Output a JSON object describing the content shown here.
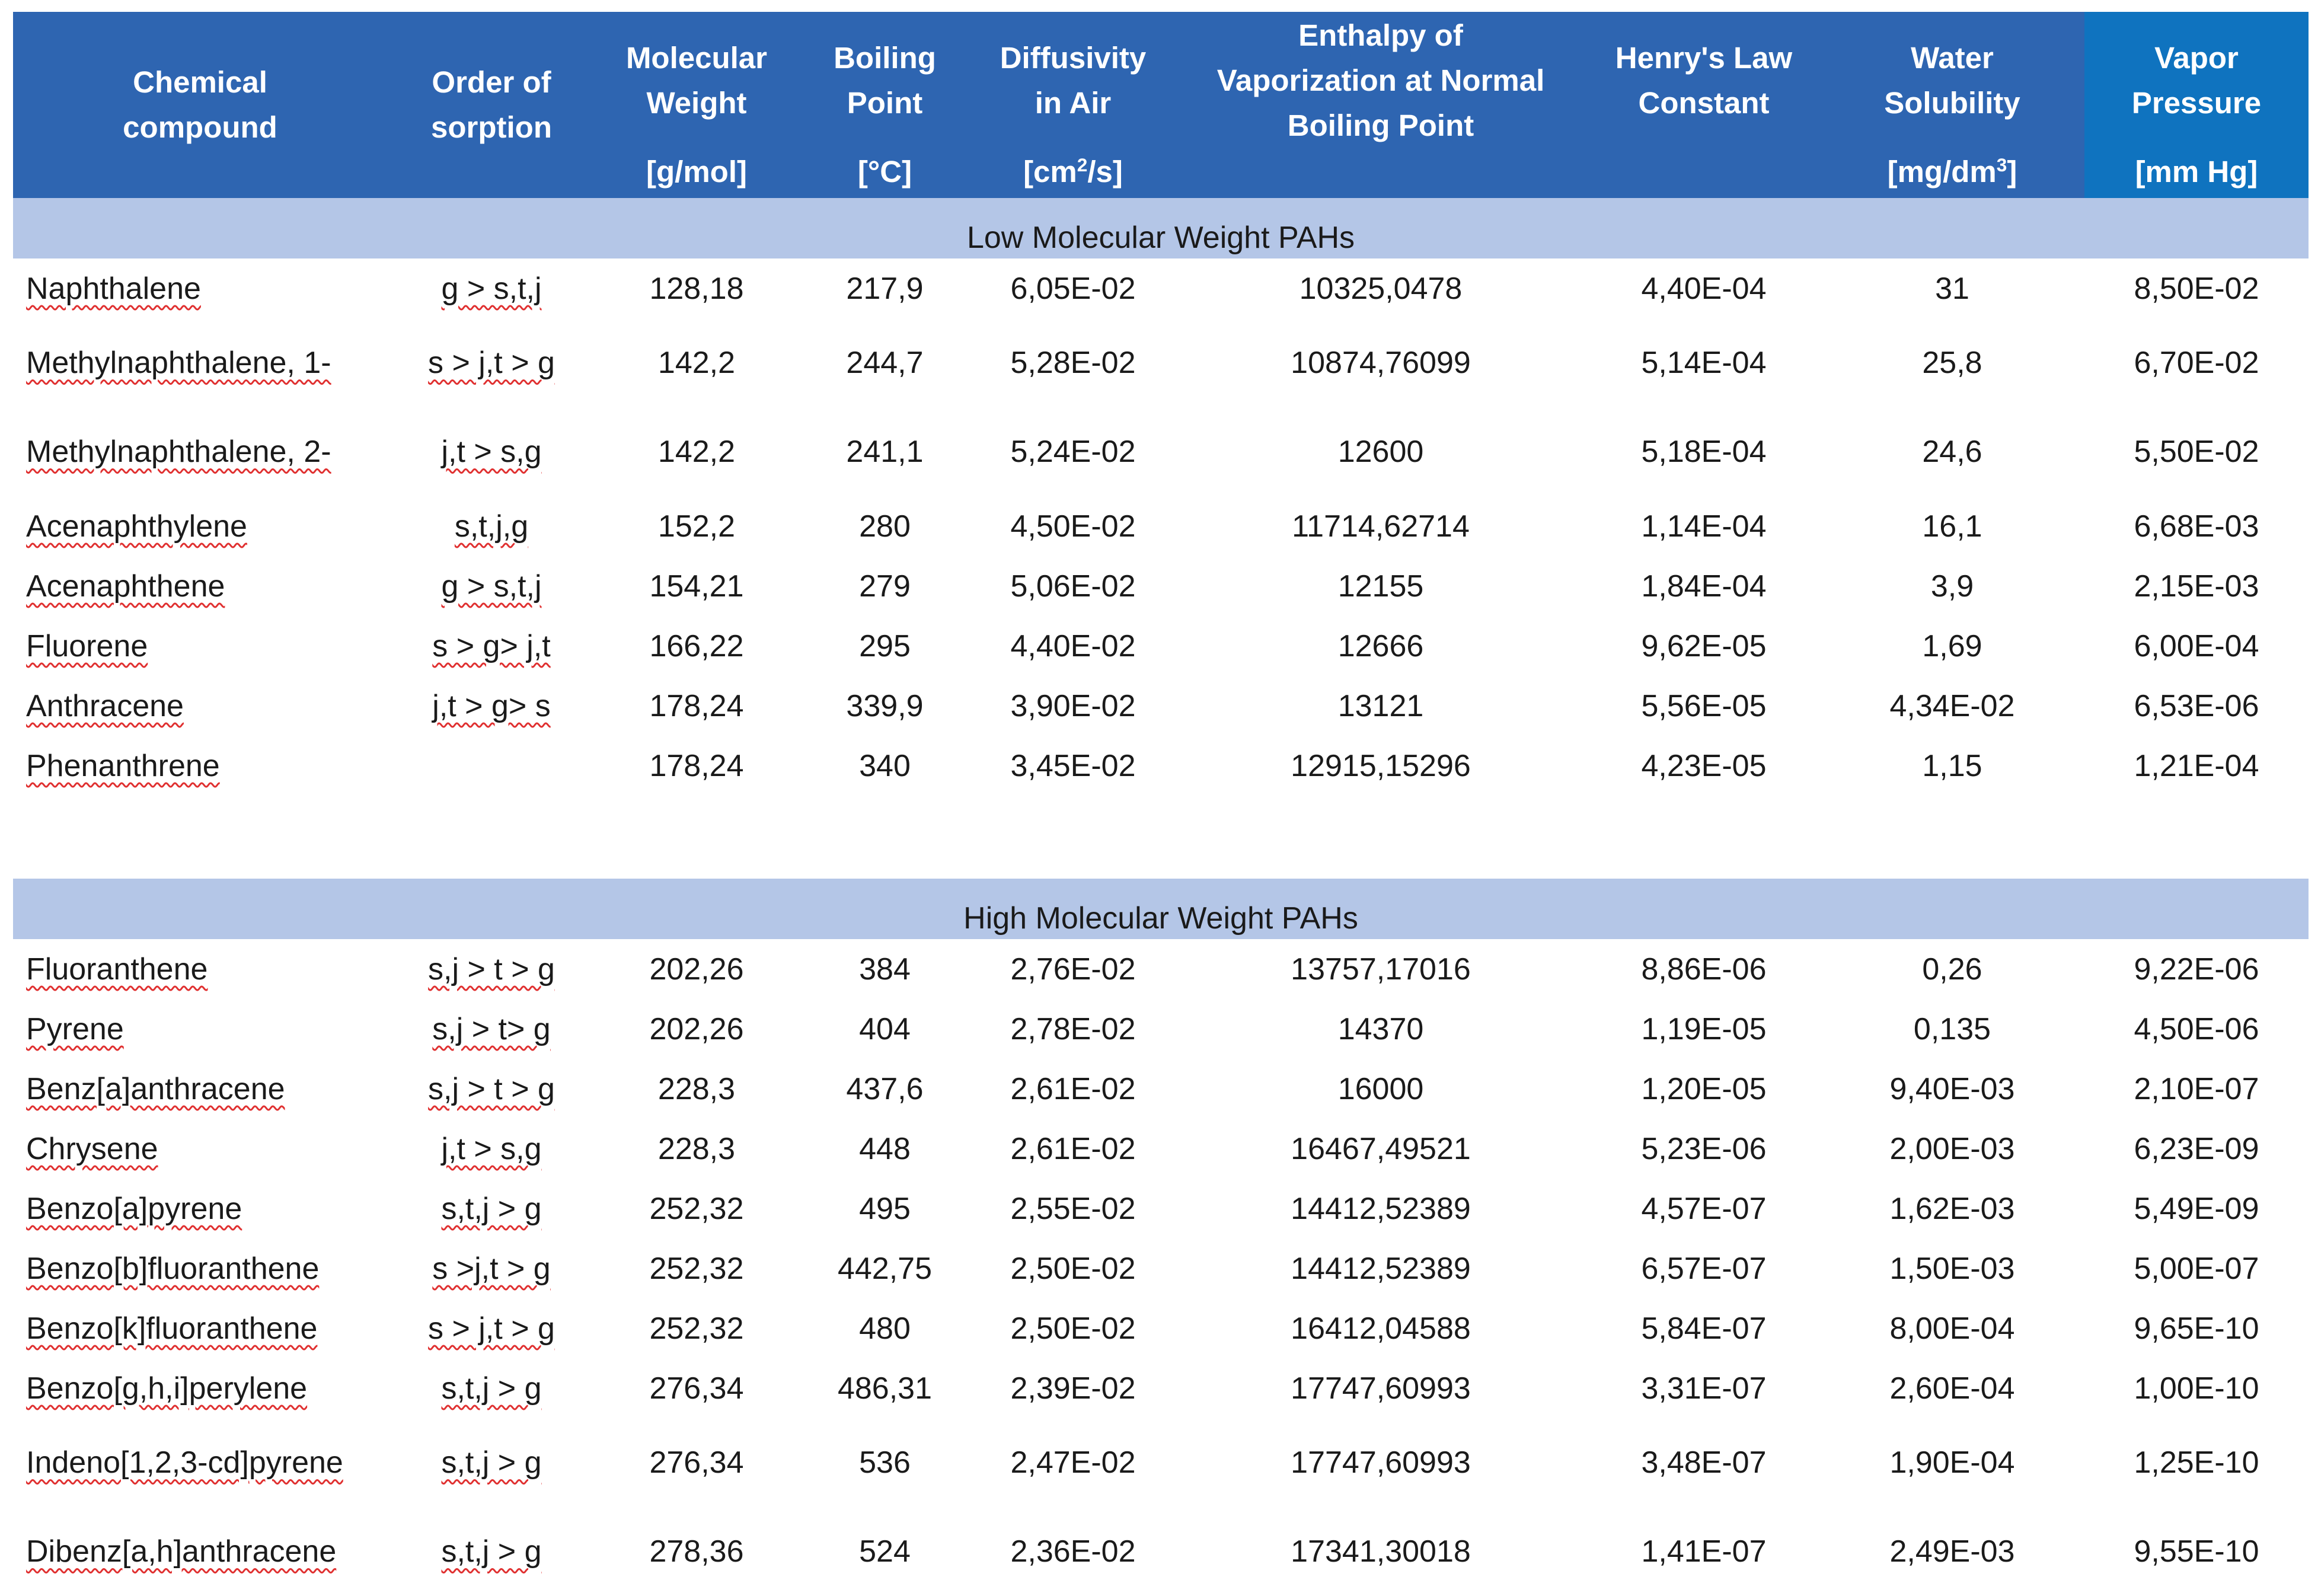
{
  "headers": [
    {
      "title_lines": [
        "Chemical",
        "compound"
      ],
      "unit": ""
    },
    {
      "title_lines": [
        "Order of",
        "sorption"
      ],
      "unit": ""
    },
    {
      "title_lines": [
        "Molecular",
        "Weight"
      ],
      "unit": "[g/mol]"
    },
    {
      "title_lines": [
        "Boiling",
        "Point"
      ],
      "unit": "[°C]"
    },
    {
      "title_lines": [
        "Diffusivity",
        "in Air"
      ],
      "unit_pre": "[cm",
      "unit_sup": "2",
      "unit_post": "/s]"
    },
    {
      "title_lines": [
        "Enthalpy of",
        "Vaporization at Normal",
        "Boiling Point"
      ],
      "unit": ""
    },
    {
      "title_lines": [
        "Henry's Law",
        "Constant"
      ],
      "unit": ""
    },
    {
      "title_lines": [
        "Water",
        "Solubility"
      ],
      "unit_pre": "[mg/dm",
      "unit_sup": "3",
      "unit_post": "]"
    },
    {
      "title_lines": [
        "Vapor",
        "Pressure"
      ],
      "unit": "[mm Hg]"
    }
  ],
  "sections": {
    "low": {
      "label": "Low Molecular Weight PAHs",
      "rows": [
        [
          "Naphthalene",
          "g > s,t,j",
          "128,18",
          "217,9",
          "6,05E-02",
          "10325,0478",
          "4,40E-04",
          "31",
          "8,50E-02"
        ],
        [
          "Methylnaphthalene, 1-",
          "s > j,t > g",
          "142,2",
          "244,7",
          "5,28E-02",
          "10874,76099",
          "5,14E-04",
          "25,8",
          "6,70E-02"
        ],
        [
          "Methylnaphthalene, 2-",
          "j,t > s,g",
          "142,2",
          "241,1",
          "5,24E-02",
          "12600",
          "5,18E-04",
          "24,6",
          "5,50E-02"
        ],
        [
          "Acenaphthylene",
          "s,t,j,g",
          "152,2",
          "280",
          "4,50E-02",
          "11714,62714",
          "1,14E-04",
          "16,1",
          "6,68E-03"
        ],
        [
          "Acenaphthene",
          "g > s,t,j",
          "154,21",
          "279",
          "5,06E-02",
          "12155",
          "1,84E-04",
          "3,9",
          "2,15E-03"
        ],
        [
          "Fluorene",
          "s > g> j,t",
          "166,22",
          "295",
          "4,40E-02",
          "12666",
          "9,62E-05",
          "1,69",
          "6,00E-04"
        ],
        [
          "Anthracene",
          "j,t > g> s",
          "178,24",
          "339,9",
          "3,90E-02",
          "13121",
          "5,56E-05",
          "4,34E-02",
          "6,53E-06"
        ],
        [
          "Phenanthrene",
          "",
          "178,24",
          "340",
          "3,45E-02",
          "12915,15296",
          "4,23E-05",
          "1,15",
          "1,21E-04"
        ]
      ]
    },
    "high": {
      "label": "High Molecular Weight PAHs",
      "rows": [
        [
          "Fluoranthene",
          "s,j > t > g",
          "202,26",
          "384",
          "2,76E-02",
          "13757,17016",
          "8,86E-06",
          "0,26",
          "9,22E-06"
        ],
        [
          "Pyrene",
          "s,j > t> g",
          "202,26",
          "404",
          "2,78E-02",
          "14370",
          "1,19E-05",
          "0,135",
          "4,50E-06"
        ],
        [
          "Benz[a]anthracene",
          "s,j > t > g",
          "228,3",
          "437,6",
          "2,61E-02",
          "16000",
          "1,20E-05",
          "9,40E-03",
          "2,10E-07"
        ],
        [
          "Chrysene",
          "j,t > s,g",
          "228,3",
          "448",
          "2,61E-02",
          "16467,49521",
          "5,23E-06",
          "2,00E-03",
          "6,23E-09"
        ],
        [
          "Benzo[a]pyrene",
          "s,t,j > g",
          "252,32",
          "495",
          "2,55E-02",
          "14412,52389",
          "4,57E-07",
          "1,62E-03",
          "5,49E-09"
        ],
        [
          "Benzo[b]fluoranthene",
          "s >j,t > g",
          "252,32",
          "442,75",
          "2,50E-02",
          "14412,52389",
          "6,57E-07",
          "1,50E-03",
          "5,00E-07"
        ],
        [
          "Benzo[k]fluoranthene",
          "s > j,t > g",
          "252,32",
          "480",
          "2,50E-02",
          "16412,04588",
          "5,84E-07",
          "8,00E-04",
          "9,65E-10"
        ],
        [
          "Benzo[g,h,i]perylene",
          "s,t,j > g",
          "276,34",
          "486,31",
          "2,39E-02",
          "17747,60993",
          "3,31E-07",
          "2,60E-04",
          "1,00E-10"
        ],
        [
          "Indeno[1,2,3-cd]pyrene",
          "s,t,j > g",
          "276,34",
          "536",
          "2,47E-02",
          "17747,60993",
          "3,48E-07",
          "1,90E-04",
          "1,25E-10"
        ],
        [
          "Dibenz[a,h]anthracene",
          "s,t,j > g",
          "278,36",
          "524",
          "2,36E-02",
          "17341,30018",
          "1,41E-07",
          "2,49E-03",
          "9,55E-10"
        ]
      ]
    }
  }
}
